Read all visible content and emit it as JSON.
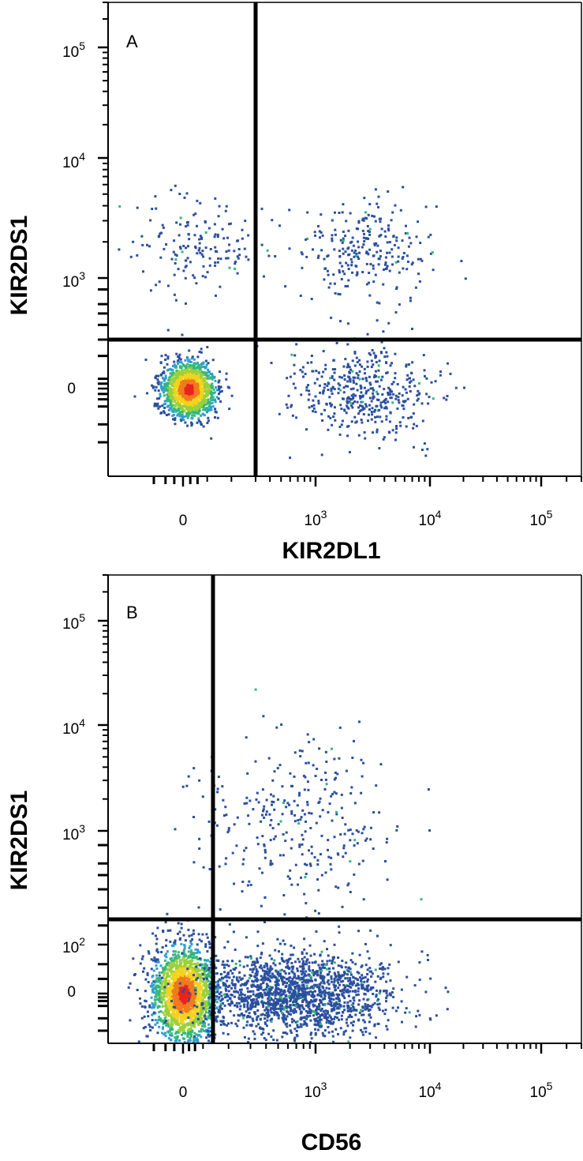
{
  "chart_data": [
    {
      "type": "scatter",
      "panel_label": "A",
      "xlabel": "KIR2DL1",
      "ylabel": "KIR2DS1",
      "x_scale": "logicle",
      "y_scale": "logicle",
      "xlim": [
        -100,
        300000
      ],
      "ylim": [
        -300,
        300000
      ],
      "x_ticks": [
        {
          "value": 0,
          "base": "0",
          "exp": ""
        },
        {
          "value": 1000,
          "base": "10",
          "exp": "3"
        },
        {
          "value": 10000,
          "base": "10",
          "exp": "4"
        },
        {
          "value": 100000,
          "base": "10",
          "exp": "5"
        }
      ],
      "y_ticks": [
        {
          "value": 0,
          "base": "0",
          "exp": ""
        },
        {
          "value": 1000,
          "base": "10",
          "exp": "3"
        },
        {
          "value": 10000,
          "base": "10",
          "exp": "4"
        },
        {
          "value": 100000,
          "base": "10",
          "exp": "5"
        }
      ],
      "quadrant_gate": {
        "x": 300,
        "y": 300
      },
      "populations": [
        {
          "name": "",
          "x_center": 20,
          "y_center": 0,
          "count": 1400,
          "density": "high"
        },
        {
          "name": "",
          "x_center": 2500,
          "y_center": 0,
          "count": 450,
          "density": "low"
        },
        {
          "name": "",
          "x_center": 60,
          "y_center": 1800,
          "count": 160,
          "density": "low"
        },
        {
          "name": "",
          "x_center": 2500,
          "y_center": 1800,
          "count": 260,
          "density": "low"
        }
      ],
      "grid": false,
      "legend": "none"
    },
    {
      "type": "scatter",
      "panel_label": "B",
      "xlabel": "CD56",
      "ylabel": "KIR2DS1",
      "x_scale": "logicle",
      "y_scale": "logicle",
      "xlim": [
        -100,
        300000
      ],
      "ylim": [
        -300,
        300000
      ],
      "x_ticks": [
        {
          "value": 0,
          "base": "0",
          "exp": ""
        },
        {
          "value": 1000,
          "base": "10",
          "exp": "3"
        },
        {
          "value": 10000,
          "base": "10",
          "exp": "4"
        },
        {
          "value": 100000,
          "base": "10",
          "exp": "5"
        }
      ],
      "y_ticks": [
        {
          "value": 0,
          "base": "0",
          "exp": ""
        },
        {
          "value": 100,
          "base": "10",
          "exp": "2"
        },
        {
          "value": 1000,
          "base": "10",
          "exp": "3"
        },
        {
          "value": 10000,
          "base": "10",
          "exp": "4"
        },
        {
          "value": 100000,
          "base": "10",
          "exp": "5"
        }
      ],
      "quadrant_gate": {
        "x": 150,
        "y": 250
      },
      "populations": [
        {
          "name": "",
          "x_center": 0,
          "y_center": 0,
          "count": 1900,
          "density": "high"
        },
        {
          "name": "",
          "x_center": 700,
          "y_center": 0,
          "count": 1700,
          "density": "low"
        },
        {
          "name": "",
          "x_center": 700,
          "y_center": 1200,
          "count": 320,
          "density": "low"
        }
      ],
      "grid": false,
      "legend": "none"
    }
  ]
}
